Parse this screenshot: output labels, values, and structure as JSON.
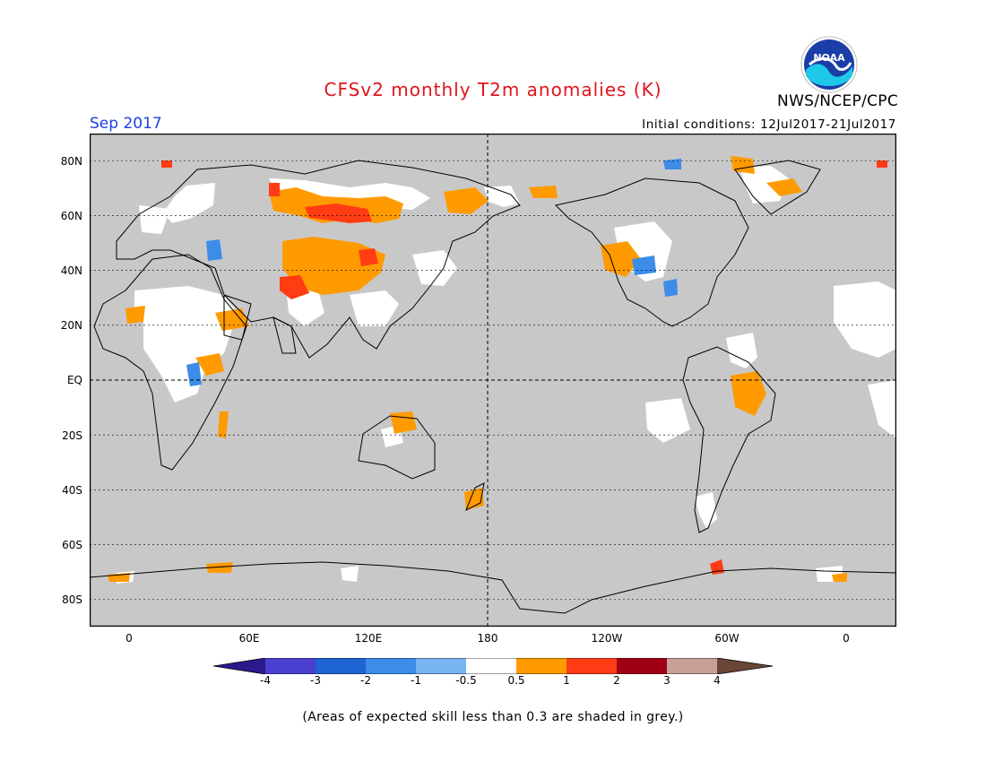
{
  "title": "CFSv2 monthly T2m anomalies (K)",
  "valid_month": "Sep 2017",
  "initial_conditions": "Initial conditions: 12Jul2017-21Jul2017",
  "agency": "NWS/NCEP/CPC",
  "logo_text": "NOAA",
  "lat_labels": [
    "80N",
    "60N",
    "40N",
    "20N",
    "EQ",
    "20S",
    "40S",
    "60S",
    "80S"
  ],
  "lon_labels": [
    "0",
    "60E",
    "120E",
    "180",
    "120W",
    "60W",
    "0"
  ],
  "colorbar": {
    "labels": [
      "-4",
      "-3",
      "-2",
      "-1",
      "-0.5",
      "0.5",
      "1",
      "2",
      "3",
      "4"
    ],
    "colors": [
      "#2a1a8c",
      "#4a40d0",
      "#1e64d2",
      "#3c8ce8",
      "#78b4f0",
      "#ffffff",
      "#ff9a00",
      "#ff3c14",
      "#a00014",
      "#c8a098",
      "#6a4636"
    ]
  },
  "colors": {
    "skill_mask": "#c8c8c8",
    "land_outline": "#000000",
    "title": "#e0141e",
    "valid_month": "#1f3fe0"
  },
  "note": "(Areas of expected skill less than 0.3 are shaded in grey.)"
}
